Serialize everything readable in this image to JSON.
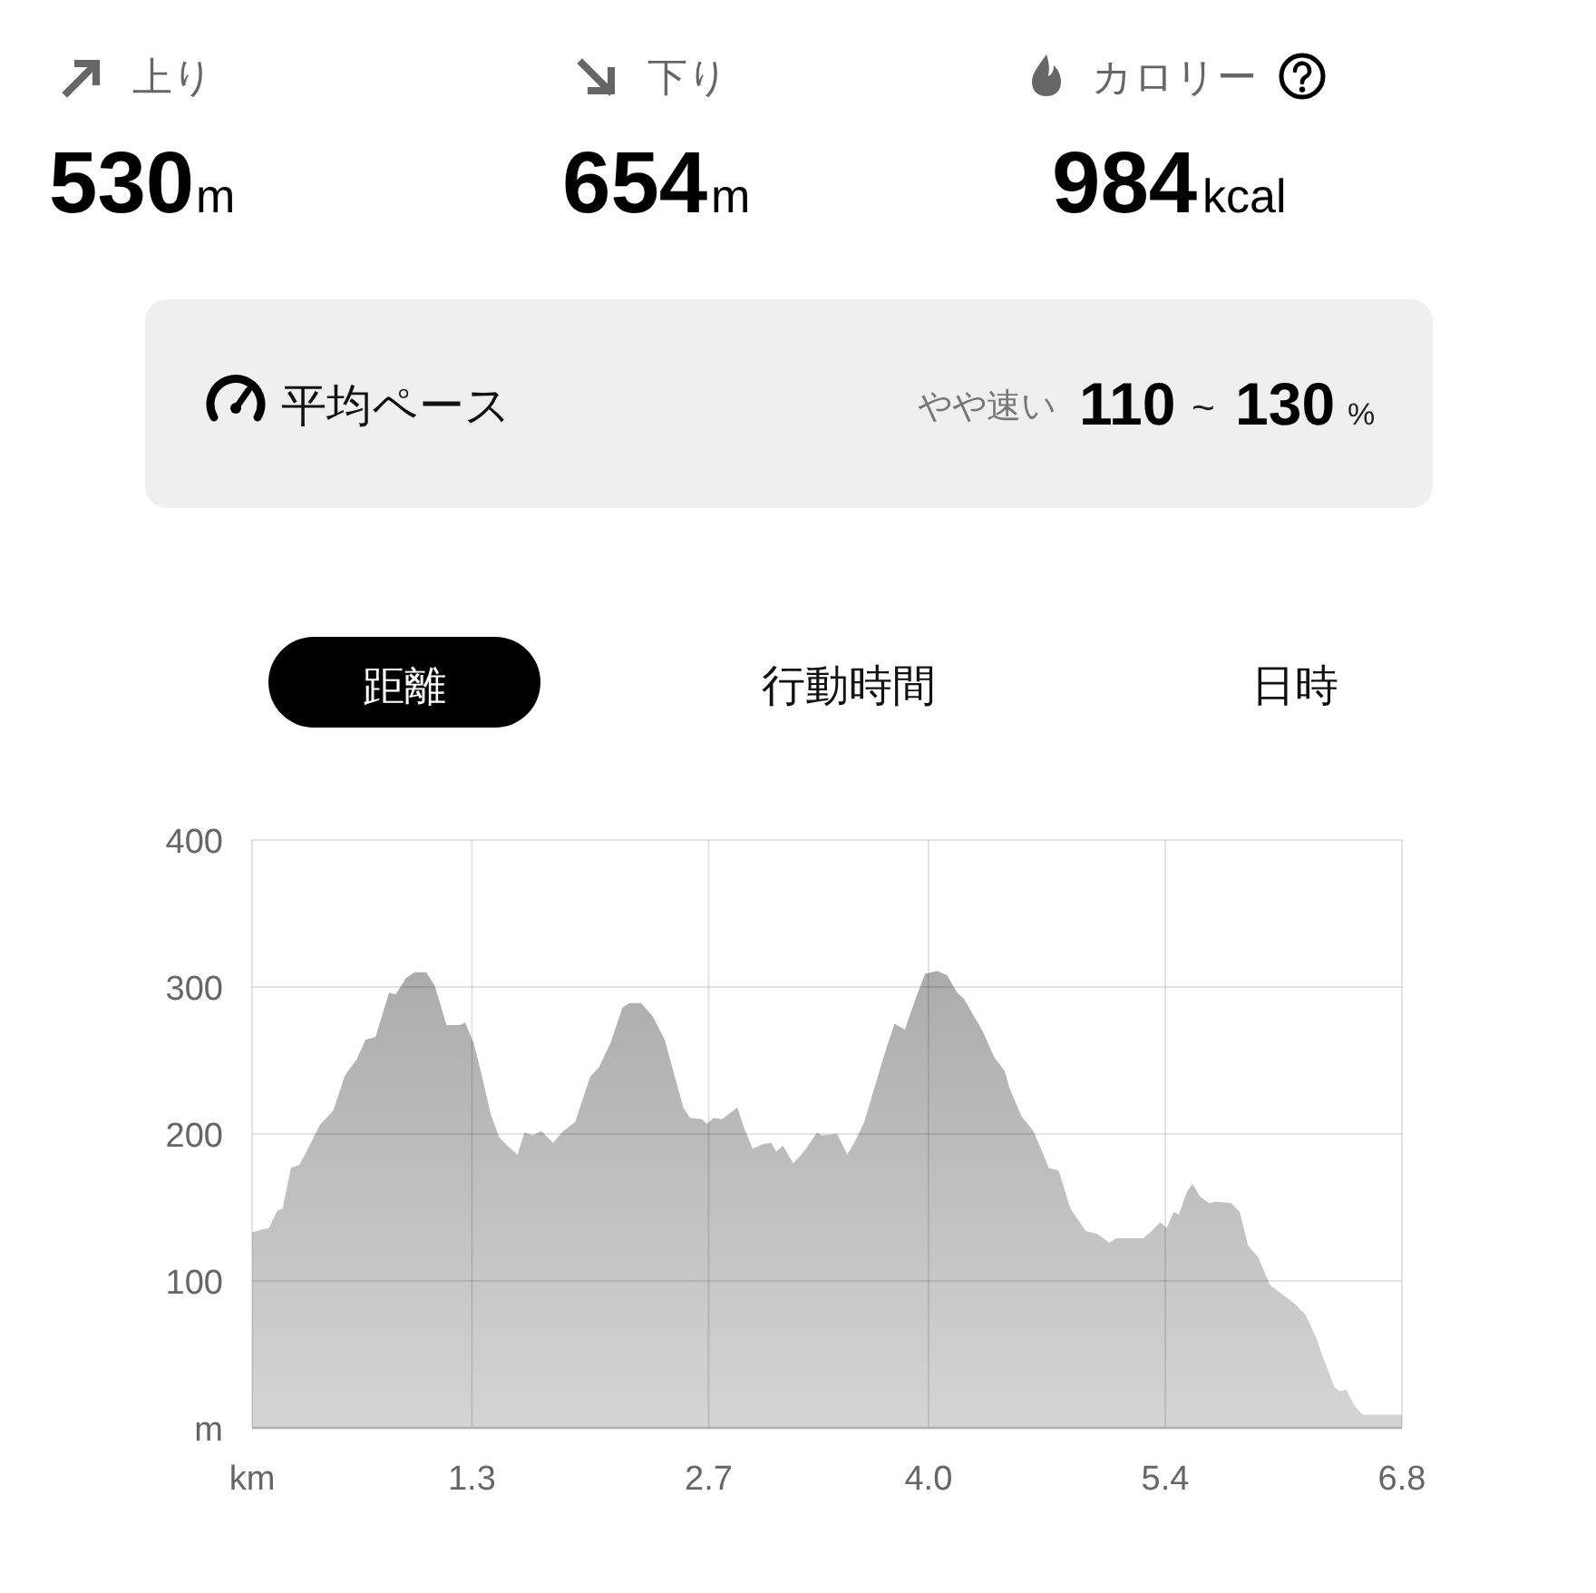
{
  "chart_data": [
    {
      "type": "other",
      "annotations": [
        "上り",
        "530",
        "m",
        "下り",
        "654",
        "m",
        "カロリー",
        "984",
        "kcal",
        "平均ペース",
        "やや速い",
        "110",
        "~",
        "130",
        "%",
        "距離",
        "行動時間",
        "日時"
      ]
    },
    {
      "type": "area",
      "x": [
        0,
        0.06,
        0.1,
        0.15,
        0.18,
        0.23,
        0.28,
        0.33,
        0.4,
        0.48,
        0.55,
        0.62,
        0.67,
        0.73,
        0.81,
        0.85,
        0.91,
        0.96,
        1.03,
        1.08,
        1.15,
        1.23,
        1.26,
        1.31,
        1.36,
        1.41,
        1.46,
        1.51,
        1.57,
        1.61,
        1.66,
        1.71,
        1.78,
        1.84,
        1.91,
        2.0,
        2.05,
        2.12,
        2.19,
        2.23,
        2.3,
        2.37,
        2.44,
        2.5,
        2.55,
        2.59,
        2.66,
        2.69,
        2.73,
        2.78,
        2.87,
        2.91,
        2.96,
        3.02,
        3.07,
        3.1,
        3.14,
        3.2,
        3.27,
        3.34,
        3.37,
        3.46,
        3.52,
        3.57,
        3.62,
        3.69,
        3.75,
        3.8,
        3.86,
        3.93,
        3.98,
        4.05,
        4.11,
        4.17,
        4.21,
        4.27,
        4.32,
        4.39,
        4.45,
        4.48,
        4.55,
        4.62,
        4.68,
        4.71,
        4.77,
        4.84,
        4.93,
        5.0,
        5.07,
        5.11,
        5.27,
        5.32,
        5.37,
        5.41,
        5.45,
        5.48,
        5.53,
        5.56,
        5.61,
        5.66,
        5.7,
        5.79,
        5.84,
        5.89,
        5.95,
        6.02,
        6.09,
        6.16,
        6.23,
        6.29,
        6.34,
        6.4,
        6.43,
        6.47,
        6.52,
        6.57,
        6.8
      ],
      "values": [
        133,
        135,
        136,
        148,
        149,
        177,
        179,
        190,
        206,
        216,
        240,
        251,
        264,
        266,
        296,
        295,
        306,
        310,
        310,
        301,
        274,
        274,
        276,
        262,
        239,
        214,
        198,
        192,
        186,
        201,
        199,
        202,
        194,
        202,
        208,
        239,
        245,
        262,
        286,
        289,
        289,
        280,
        264,
        239,
        218,
        211,
        210,
        207,
        211,
        210,
        218,
        204,
        190,
        193,
        194,
        188,
        192,
        180,
        189,
        201,
        199,
        200,
        186,
        196,
        208,
        235,
        258,
        275,
        271,
        294,
        309,
        311,
        308,
        296,
        292,
        280,
        270,
        252,
        243,
        231,
        212,
        202,
        186,
        177,
        175,
        149,
        134,
        132,
        126,
        129,
        129,
        134,
        140,
        136,
        147,
        145,
        161,
        166,
        157,
        153,
        154,
        153,
        147,
        124,
        116,
        97,
        91,
        85,
        77,
        62,
        46,
        28,
        25,
        26,
        15,
        9,
        9
      ],
      "color": "#a0a0a0",
      "xlim": [
        0,
        6.8
      ],
      "xticks": [
        {
          "value": 0,
          "label": "km"
        },
        1.3,
        2.7,
        {
          "value": 4.0,
          "label": "4.0"
        },
        5.4,
        6.8
      ],
      "ylim": [
        0,
        400
      ],
      "yticks": [
        {
          "value": 0,
          "label": "m"
        },
        100,
        200,
        300,
        400
      ],
      "grid": true
    }
  ]
}
